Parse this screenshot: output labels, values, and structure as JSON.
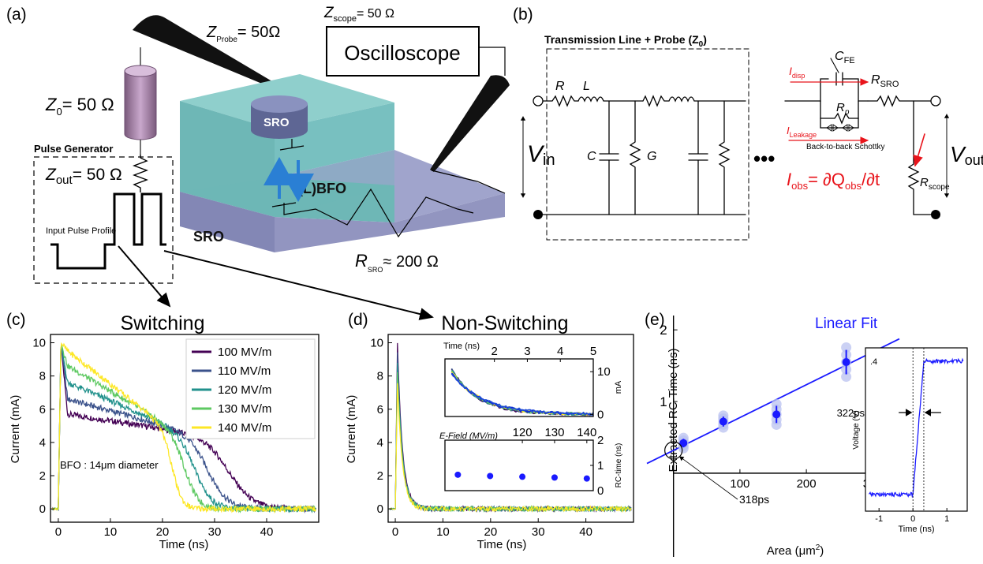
{
  "panel_labels": {
    "a": "(a)",
    "b": "(b)",
    "c": "(c)",
    "d": "(d)",
    "e": "(e)"
  },
  "schematic": {
    "z_probe_main": "Z",
    "z_probe_sub": "Probe",
    "z_probe_val": "= 50Ω",
    "z_scope_main": "Z",
    "z_scope_sub": "scope",
    "z_scope_val": "= 50 Ω",
    "oscilloscope": "Oscilloscope",
    "z0_main": "Z",
    "z0_sub": "0",
    "z0_val": "= 50 Ω",
    "pulse_generator": "Pulse Generator",
    "zout_main": "Z",
    "zout_sub": "out",
    "zout_val": "= 50 Ω",
    "input_pulse_profile": "Input Pulse Profile",
    "sro_top": "SRO",
    "lbfo": "(L)BFO",
    "sro_bottom": "SRO",
    "rsro_main": "R",
    "rsro_sub": "SRO",
    "rsro_val": "≈ 200 Ω"
  },
  "circuit": {
    "tl_title": "Transmission Line + Probe (Z",
    "tl_sub": "0",
    "tl_close": ")",
    "R": "R",
    "L": "L",
    "C": "C",
    "G": "G",
    "vin_main": "V",
    "vin_sub": "in",
    "dots": "•••",
    "cfe_main": "C",
    "cfe_sub": "FE",
    "idisp_main": "I",
    "idisp_sub": "disp",
    "rsro_main": "R",
    "rsro_sub": "SRO",
    "rp_main": "R",
    "rp_sub": "p",
    "ileak_main": "I",
    "ileak_sub": "Leakage",
    "schottky": "Back-to-back Schottky",
    "vout_main": "V",
    "vout_sub": "out",
    "iobs_main": "I",
    "iobs_sub": "obs",
    "iobs_eq": "= ∂Q",
    "iobs_sub2": "obs",
    "iobs_end": "/∂t",
    "rscope_main": "R",
    "rscope_sub": "scope"
  },
  "chart_data": [
    {
      "id": "c",
      "type": "line",
      "title": "Switching",
      "xlabel": "Time (ns)",
      "ylabel": "Current (mA)",
      "xlim": [
        -1.5,
        50
      ],
      "ylim": [
        -0.8,
        10.5
      ],
      "xticks": [
        0,
        10,
        20,
        30,
        40
      ],
      "yticks": [
        0,
        2,
        4,
        6,
        8,
        10
      ],
      "annotation": "BFO : 14μm diameter",
      "legend_position": "top-right",
      "series": [
        {
          "name": "100 MV/m",
          "color": "#440154",
          "plateau": 5.1,
          "end": 4.2,
          "fall": 33,
          "width": 3.2
        },
        {
          "name": "110 MV/m",
          "color": "#3b528b",
          "plateau": 6.0,
          "end": 4.3,
          "fall": 29,
          "width": 2.6
        },
        {
          "name": "120 MV/m",
          "color": "#21918c",
          "plateau": 7.0,
          "end": 4.3,
          "fall": 26.5,
          "width": 2.2
        },
        {
          "name": "130 MV/m",
          "color": "#5ec962",
          "plateau": 8.0,
          "end": 4.4,
          "fall": 24.5,
          "width": 1.8
        },
        {
          "name": "140 MV/m",
          "color": "#fde725",
          "plateau": 8.9,
          "end": 4.6,
          "fall": 22,
          "width": 1.3
        }
      ]
    },
    {
      "id": "d",
      "type": "line",
      "title": "Non-Switching",
      "xlabel": "Time (ns)",
      "ylabel": "Current (mA)",
      "xlim": [
        -1.5,
        50
      ],
      "ylim": [
        -0.8,
        10.5
      ],
      "xticks": [
        0,
        10,
        20,
        30,
        40
      ],
      "yticks": [
        0,
        2,
        4,
        6,
        8,
        10
      ],
      "series": [
        {
          "color": "#440154"
        },
        {
          "color": "#3b528b"
        },
        {
          "color": "#21918c"
        },
        {
          "color": "#5ec962"
        },
        {
          "color": "#fde725"
        }
      ],
      "inset_decay": {
        "xlabel": "Time (ns)",
        "ylabel": "mA",
        "xlim": [
          0.5,
          5
        ],
        "ylim": [
          -0.5,
          13
        ],
        "xticks": [
          2,
          3,
          4,
          5
        ],
        "yticks": [
          0,
          10
        ]
      },
      "inset_rc": {
        "xlabel": "E-Field (MV/m)",
        "ylabel": "RC-time (ns)",
        "xlim": [
          96,
          142
        ],
        "ylim": [
          0,
          2
        ],
        "xticks": [
          120,
          130,
          140
        ],
        "yticks": [
          0,
          1,
          2
        ],
        "x": [
          100,
          110,
          120,
          130,
          140
        ],
        "y": [
          0.63,
          0.58,
          0.55,
          0.52,
          0.48
        ]
      }
    },
    {
      "id": "e",
      "type": "scatter",
      "title": "",
      "legend_label": "Linear Fit",
      "xlabel_main": "Area (μm",
      "xlabel_sup": "2",
      "xlabel_end": ")",
      "ylabel": "Extracted RC-Time (ns)",
      "xlim": [
        -40,
        340
      ],
      "ylim": [
        -0.75,
        2.2
      ],
      "xticks": [
        100,
        200,
        300
      ],
      "yticks": [
        1,
        2
      ],
      "x": [
        15,
        75,
        155,
        260
      ],
      "y": [
        0.42,
        0.72,
        0.82,
        1.55
      ],
      "yerr": [
        0.06,
        0.07,
        0.12,
        0.17
      ],
      "fit": {
        "slope": 0.00458,
        "intercept": 0.318
      },
      "intercept_label": "318ps",
      "inset": {
        "xlabel": "Time (ns)",
        "ylabel": "Voltage (V)",
        "xlim": [
          -1.4,
          1.6
        ],
        "ylim": [
          -0.05,
          0.44
        ],
        "xticks": [
          -1,
          0,
          1
        ],
        "ytick_label": ".4",
        "rise_label": "322ps"
      }
    }
  ]
}
